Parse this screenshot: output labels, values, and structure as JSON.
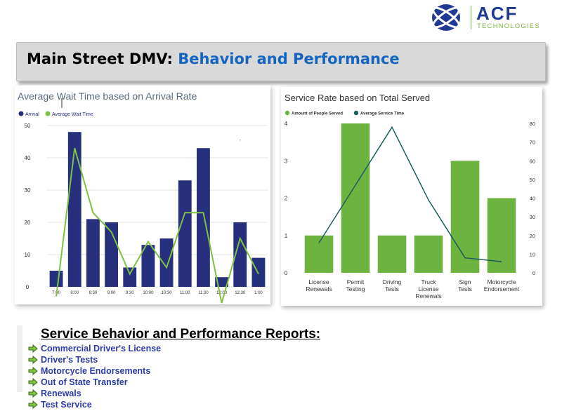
{
  "logo": {
    "brand": "ACF",
    "tagline": "TECHNOLOGIES"
  },
  "banner": {
    "title_main": "Main Street DMV: ",
    "title_accent": "Behavior and Performance"
  },
  "colors": {
    "navy_bar": "#26307c",
    "green_line": "#7dc242",
    "green_bar": "#6db33f",
    "teal_line": "#1b5e5e",
    "title_blue": "#1565c0",
    "link_blue": "#2e3ba8"
  },
  "chart_data": [
    {
      "type": "bar",
      "title": "Average Wait Time based on Arrival Rate",
      "categories": [
        "7:00",
        "8:00",
        "8:30",
        "9:00",
        "9:30",
        "10:00",
        "10:30",
        "11:00",
        "11:30",
        "12:00",
        "12:30",
        "1:00"
      ],
      "series": [
        {
          "name": "Arrival",
          "kind": "bar",
          "values": [
            5,
            48,
            21,
            20,
            6,
            13,
            15,
            33,
            43,
            3,
            20,
            9
          ]
        },
        {
          "name": "Average Wait Time",
          "kind": "line",
          "values": [
            -3,
            43,
            23,
            17,
            4,
            14,
            6,
            23,
            23,
            -5,
            15,
            4
          ]
        }
      ],
      "y_ticks": [
        0,
        10,
        20,
        30,
        40,
        50
      ],
      "ylim": [
        0,
        50
      ],
      "grid": true,
      "legend": "top-left"
    },
    {
      "type": "bar",
      "title": "Service Rate based on Total Served",
      "categories": [
        "License Renewals",
        "Permit Testing",
        "Driving Tests",
        "Truck License Renewals",
        "Sign Tests",
        "Motorcycle Endorsement"
      ],
      "series": [
        {
          "name": "Amount of People Served",
          "kind": "bar",
          "axis": "left",
          "values": [
            1,
            4,
            1,
            1,
            3,
            2
          ]
        },
        {
          "name": "Average Service Time",
          "kind": "line",
          "axis": "right",
          "values": [
            16,
            47,
            78,
            39,
            8,
            6
          ]
        }
      ],
      "y_ticks": [
        0,
        1,
        2,
        3,
        4
      ],
      "ylim": [
        0,
        4
      ],
      "y2_ticks": [
        0,
        10,
        20,
        30,
        40,
        50,
        60,
        70,
        80
      ],
      "y2lim": [
        0,
        80
      ],
      "grid": false,
      "legend": "top-left"
    }
  ],
  "reports": {
    "title": "Service Behavior and Performance Reports:",
    "items": [
      "Commercial Driver's License",
      "Driver's Tests",
      "Motorcycle Endorsements",
      "Out of State Transfer",
      "Renewals",
      "Test Service"
    ]
  }
}
